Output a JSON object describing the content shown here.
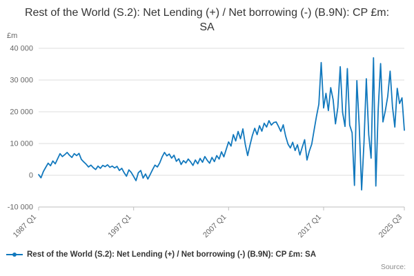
{
  "title": "Rest of the World (S.2): Net Lending (+) / Net borrowing (-) (B.9N): CP £m: SA",
  "legend": {
    "label": "Rest of the World (S.2): Net Lending (+) / Net borrowing (-) (B.9N): CP £m: SA"
  },
  "source": {
    "label": "Source:"
  },
  "chart_data": {
    "type": "line",
    "title": "Rest of the World (S.2): Net Lending (+) / Net borrowing (-) (B.9N): CP £m: SA",
    "xlabel": "",
    "ylabel": "£m",
    "ylim": [
      -10000,
      40000
    ],
    "grid": "horizontal",
    "legend_position": "bottom",
    "line_color": "#1178bd",
    "x_unit": "quarter",
    "x_start": "1987 Q1",
    "x_end": "2025 Q3",
    "y_ticks": [
      {
        "value": -10000,
        "label": "-10 000"
      },
      {
        "value": 0,
        "label": "0"
      },
      {
        "value": 10000,
        "label": "10 000"
      },
      {
        "value": 20000,
        "label": "20 000"
      },
      {
        "value": 30000,
        "label": "30 000"
      },
      {
        "value": 40000,
        "label": "40 000"
      }
    ],
    "x_ticks": [
      {
        "index": 0,
        "label": "1987 Q1"
      },
      {
        "index": 40,
        "label": "1997 Q1"
      },
      {
        "index": 80,
        "label": "2007 Q1"
      },
      {
        "index": 120,
        "label": "2017 Q1"
      },
      {
        "index": 154,
        "label": "2025 Q3"
      }
    ],
    "values": [
      200,
      -800,
      1200,
      2500,
      3800,
      3000,
      4500,
      3600,
      5200,
      6800,
      5900,
      6500,
      7200,
      6300,
      5600,
      6800,
      6200,
      6900,
      5000,
      4200,
      3500,
      2600,
      3200,
      2400,
      1800,
      2900,
      2200,
      3100,
      2700,
      3300,
      2500,
      2900,
      2300,
      2800,
      1500,
      2200,
      800,
      -300,
      1700,
      900,
      -400,
      -1700,
      800,
      1500,
      -900,
      400,
      -1200,
      300,
      1800,
      3200,
      2600,
      3900,
      5800,
      7200,
      6100,
      6700,
      5400,
      6300,
      4400,
      5200,
      3400,
      4600,
      3900,
      5100,
      4200,
      3100,
      4800,
      3600,
      5300,
      4100,
      5900,
      4700,
      3800,
      5600,
      4300,
      6200,
      5100,
      7400,
      5800,
      8200,
      10500,
      9200,
      12800,
      10800,
      13800,
      11500,
      14600,
      9800,
      6200,
      9500,
      12500,
      14800,
      12800,
      15600,
      13900,
      16400,
      15200,
      17200,
      15800,
      16600,
      16800,
      15400,
      13800,
      15900,
      12400,
      9800,
      8600,
      10400,
      7800,
      9600,
      6400,
      8800,
      11200,
      4800,
      7600,
      9800,
      14200,
      18600,
      22400,
      35500,
      21200,
      25800,
      20400,
      27600,
      23800,
      16200,
      21400,
      34200,
      19800,
      15400,
      33600,
      15800,
      13400,
      -3200,
      29800,
      15600,
      -4600,
      10200,
      30400,
      12800,
      5400,
      37000,
      -3400,
      20600,
      35200,
      16800,
      20400,
      24800,
      32800,
      21600,
      15200,
      27400,
      22600,
      24400,
      14200
    ]
  }
}
